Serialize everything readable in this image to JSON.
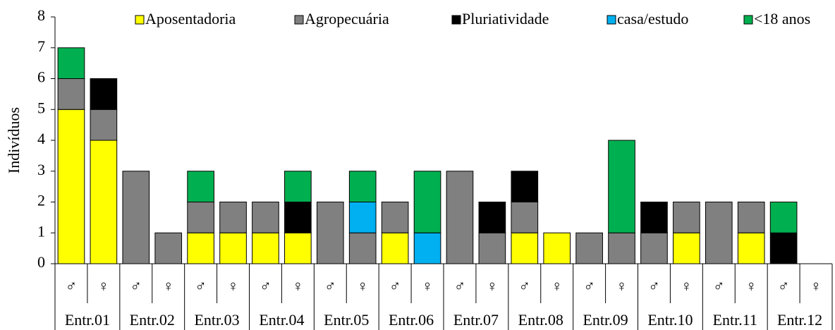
{
  "chart_data": {
    "type": "stacked_bar",
    "y_label": "Indivíduos",
    "categories": [
      "♂",
      "♀",
      "♂",
      "♀",
      "♂",
      "♀",
      "♂",
      "♀",
      "♂",
      "♀",
      "♂",
      "♀",
      "♂",
      "♀",
      "♂",
      "♀",
      "♂",
      "♀",
      "♂",
      "♀",
      "♂",
      "♀",
      "♂",
      "♀"
    ],
    "groups": [
      "Entr.01",
      "Entr.02",
      "Entr.03",
      "Entr.04",
      "Entr.05",
      "Entr.06",
      "Entr.07",
      "Entr.08",
      "Entr.09",
      "Entr.10",
      "Entr.11",
      "Entr.12"
    ],
    "series": [
      {
        "name": "Aposentadoria",
        "color": "#ffff00",
        "values": [
          5,
          4,
          0,
          0,
          1,
          1,
          1,
          1,
          0,
          0,
          1,
          0,
          0,
          0,
          1,
          1,
          0,
          0,
          0,
          1,
          0,
          1,
          0,
          0
        ]
      },
      {
        "name": "Agropecuária",
        "color": "#808080",
        "values": [
          1,
          1,
          3,
          1,
          1,
          1,
          1,
          0,
          2,
          1,
          1,
          0,
          3,
          1,
          1,
          0,
          1,
          1,
          1,
          1,
          2,
          1,
          0,
          0
        ]
      },
      {
        "name": "Pluriatividade",
        "color": "#000000",
        "values": [
          0,
          1,
          0,
          0,
          0,
          0,
          0,
          1,
          0,
          0,
          0,
          0,
          0,
          1,
          1,
          0,
          0,
          0,
          1,
          0,
          0,
          0,
          1,
          0
        ]
      },
      {
        "name": "casa/estudo",
        "color": "#00b0f0",
        "values": [
          0,
          0,
          0,
          0,
          0,
          0,
          0,
          0,
          0,
          1,
          0,
          1,
          0,
          0,
          0,
          0,
          0,
          0,
          0,
          0,
          0,
          0,
          0,
          0
        ]
      },
      {
        "name": "<18 anos",
        "color": "#00b050",
        "values": [
          1,
          0,
          0,
          0,
          1,
          0,
          0,
          1,
          0,
          1,
          0,
          2,
          0,
          0,
          0,
          0,
          0,
          3,
          0,
          0,
          0,
          0,
          1,
          0
        ]
      }
    ],
    "ylim": [
      0,
      8
    ],
    "yticks": [
      0,
      1,
      2,
      3,
      4,
      5,
      6,
      7,
      8
    ],
    "legend": "top"
  }
}
